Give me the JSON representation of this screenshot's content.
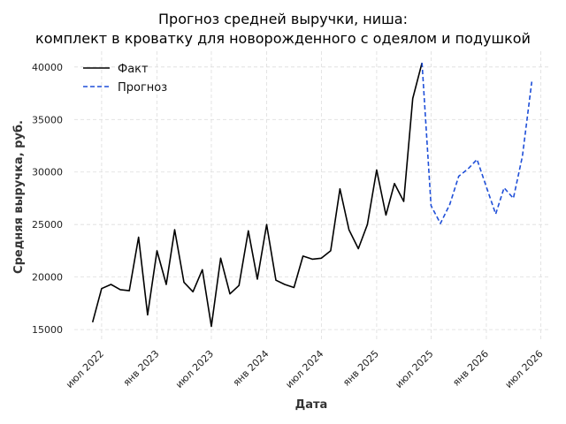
{
  "chart_data": {
    "type": "line",
    "title_lines": [
      "Прогноз средней выручки, ниша:",
      "комплект в кроватку для новорожденного с одеялом и подушкой"
    ],
    "xlabel": "Дата",
    "ylabel": "Средняя выручка, руб.",
    "ylim": [
      14000,
      41500
    ],
    "yticks": [
      15000,
      20000,
      25000,
      30000,
      35000,
      40000
    ],
    "xlim": [
      "2022-04-01",
      "2026-08-01"
    ],
    "xticks": [
      {
        "date": "2022-07-01",
        "label": "июл 2022"
      },
      {
        "date": "2023-01-01",
        "label": "янв 2023"
      },
      {
        "date": "2023-07-01",
        "label": "июл 2023"
      },
      {
        "date": "2024-01-01",
        "label": "янв 2024"
      },
      {
        "date": "2024-07-01",
        "label": "июл 2024"
      },
      {
        "date": "2025-01-01",
        "label": "янв 2025"
      },
      {
        "date": "2025-07-01",
        "label": "июл 2025"
      },
      {
        "date": "2026-01-01",
        "label": "янв 2026"
      },
      {
        "date": "2026-07-01",
        "label": "июл 2026"
      }
    ],
    "grid": true,
    "legend_position": "top-left",
    "series": [
      {
        "name": "Факт",
        "color": "#000000",
        "style": "solid",
        "points": [
          [
            "2022-06-01",
            15700
          ],
          [
            "2022-07-01",
            18900
          ],
          [
            "2022-08-01",
            19300
          ],
          [
            "2022-09-01",
            18800
          ],
          [
            "2022-10-01",
            18700
          ],
          [
            "2022-11-01",
            23800
          ],
          [
            "2022-12-01",
            16400
          ],
          [
            "2023-01-01",
            22500
          ],
          [
            "2023-02-01",
            19300
          ],
          [
            "2023-03-01",
            24500
          ],
          [
            "2023-04-01",
            19500
          ],
          [
            "2023-05-01",
            18600
          ],
          [
            "2023-06-01",
            20700
          ],
          [
            "2023-07-01",
            15300
          ],
          [
            "2023-08-01",
            21800
          ],
          [
            "2023-09-01",
            18400
          ],
          [
            "2023-10-01",
            19200
          ],
          [
            "2023-11-01",
            24400
          ],
          [
            "2023-12-01",
            19800
          ],
          [
            "2024-01-01",
            25000
          ],
          [
            "2024-02-01",
            19700
          ],
          [
            "2024-03-01",
            19300
          ],
          [
            "2024-04-01",
            19000
          ],
          [
            "2024-05-01",
            22000
          ],
          [
            "2024-06-01",
            21700
          ],
          [
            "2024-07-01",
            21800
          ],
          [
            "2024-08-01",
            22500
          ],
          [
            "2024-09-01",
            28400
          ],
          [
            "2024-10-01",
            24500
          ],
          [
            "2024-11-01",
            22700
          ],
          [
            "2024-12-01",
            25000
          ],
          [
            "2025-01-01",
            30200
          ],
          [
            "2025-02-01",
            25900
          ],
          [
            "2025-03-01",
            28900
          ],
          [
            "2025-04-01",
            27200
          ],
          [
            "2025-05-01",
            37000
          ],
          [
            "2025-06-01",
            40400
          ]
        ]
      },
      {
        "name": "Прогноз",
        "color": "#1f4fd8",
        "style": "dashed",
        "points": [
          [
            "2025-06-01",
            40400
          ],
          [
            "2025-07-01",
            26800
          ],
          [
            "2025-08-01",
            25100
          ],
          [
            "2025-09-01",
            26900
          ],
          [
            "2025-10-01",
            29600
          ],
          [
            "2025-11-01",
            30300
          ],
          [
            "2025-12-01",
            31200
          ],
          [
            "2026-01-01",
            28600
          ],
          [
            "2026-02-01",
            26000
          ],
          [
            "2026-03-01",
            28500
          ],
          [
            "2026-04-01",
            27500
          ],
          [
            "2026-05-01",
            31500
          ],
          [
            "2026-06-01",
            38600
          ]
        ]
      }
    ]
  }
}
